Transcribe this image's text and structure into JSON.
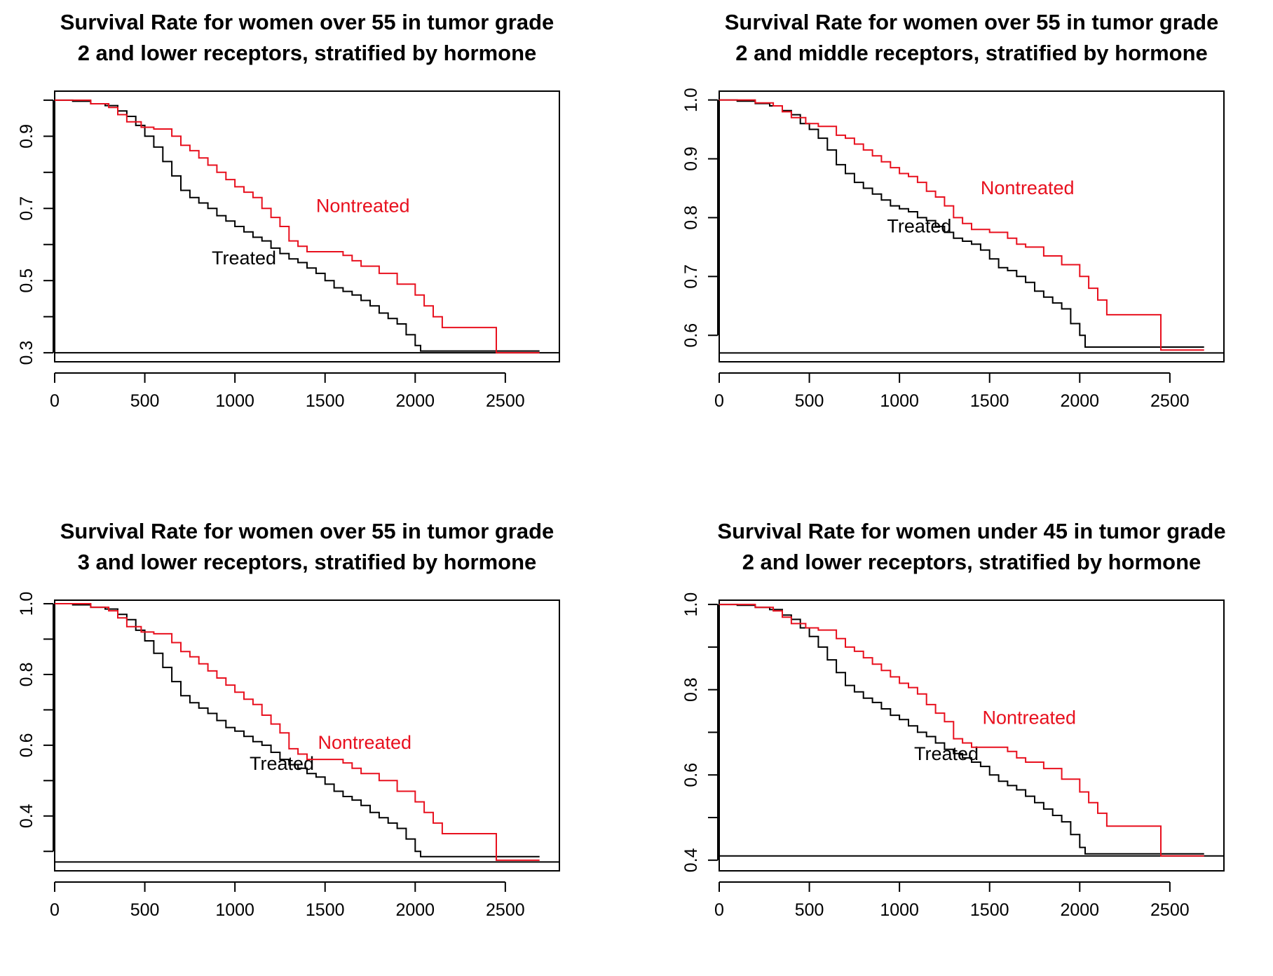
{
  "chart_data": [
    {
      "type": "line",
      "title_lines": [
        "Survival Rate for women over 55 in tumor grade",
        "2 and lower receptors, stratified by hormone"
      ],
      "xlabel": "",
      "ylabel": "",
      "xlim": [
        0,
        2800
      ],
      "ylim": [
        0.275,
        1.025
      ],
      "xticks": [
        0,
        500,
        1000,
        1500,
        2000,
        2500
      ],
      "yticks": [
        0.3,
        0.5,
        0.7,
        0.9
      ],
      "yminor": [
        0.4,
        0.6,
        0.8,
        1.0
      ],
      "grid": false,
      "hline": 0.3,
      "series": [
        {
          "name": "Treated",
          "color": "#000000",
          "x": [
            0,
            100,
            200,
            280,
            350,
            400,
            450,
            500,
            550,
            600,
            650,
            700,
            750,
            800,
            850,
            900,
            950,
            1000,
            1050,
            1100,
            1150,
            1200,
            1250,
            1300,
            1350,
            1400,
            1450,
            1500,
            1550,
            1600,
            1650,
            1700,
            1750,
            1800,
            1850,
            1900,
            1950,
            2000,
            2030,
            2100,
            2200,
            2690
          ],
          "y": [
            1.0,
            0.997,
            0.99,
            0.985,
            0.97,
            0.955,
            0.93,
            0.9,
            0.87,
            0.83,
            0.79,
            0.75,
            0.73,
            0.715,
            0.7,
            0.68,
            0.665,
            0.65,
            0.635,
            0.62,
            0.61,
            0.59,
            0.575,
            0.56,
            0.55,
            0.535,
            0.52,
            0.5,
            0.48,
            0.47,
            0.46,
            0.445,
            0.43,
            0.41,
            0.395,
            0.38,
            0.35,
            0.32,
            0.305,
            0.305,
            0.305,
            0.305
          ],
          "label": {
            "text": "Treated",
            "x": 1050,
            "y": 0.545
          }
        },
        {
          "name": "Nontreated",
          "color": "#e8101e",
          "x": [
            0,
            200,
            300,
            350,
            400,
            480,
            550,
            650,
            700,
            750,
            800,
            850,
            900,
            950,
            1000,
            1050,
            1100,
            1150,
            1200,
            1250,
            1300,
            1350,
            1400,
            1500,
            1600,
            1650,
            1700,
            1800,
            1900,
            2000,
            2050,
            2100,
            2150,
            2200,
            2450,
            2690
          ],
          "y": [
            1.0,
            0.99,
            0.98,
            0.96,
            0.94,
            0.925,
            0.92,
            0.9,
            0.875,
            0.86,
            0.84,
            0.82,
            0.8,
            0.78,
            0.76,
            0.745,
            0.73,
            0.7,
            0.675,
            0.65,
            0.61,
            0.595,
            0.58,
            0.58,
            0.57,
            0.555,
            0.54,
            0.52,
            0.49,
            0.46,
            0.43,
            0.4,
            0.37,
            0.37,
            0.3,
            0.3
          ],
          "label": {
            "text": "Nontreated",
            "x": 1710,
            "y": 0.69
          }
        }
      ]
    },
    {
      "type": "line",
      "title_lines": [
        "Survival Rate for women over 55 in tumor grade",
        "2 and middle receptors, stratified by hormone"
      ],
      "xlabel": "",
      "ylabel": "",
      "xlim": [
        0,
        2800
      ],
      "ylim": [
        0.555,
        1.015
      ],
      "xticks": [
        0,
        500,
        1000,
        1500,
        2000,
        2500
      ],
      "yticks": [
        0.6,
        0.7,
        0.8,
        0.9,
        1.0
      ],
      "yminor": [],
      "grid": false,
      "hline": 0.57,
      "series": [
        {
          "name": "Treated",
          "color": "#000000",
          "x": [
            0,
            100,
            200,
            280,
            350,
            400,
            450,
            500,
            550,
            600,
            650,
            700,
            750,
            800,
            850,
            900,
            950,
            1000,
            1050,
            1100,
            1150,
            1200,
            1250,
            1300,
            1350,
            1400,
            1450,
            1500,
            1550,
            1600,
            1650,
            1700,
            1750,
            1800,
            1850,
            1900,
            1950,
            2000,
            2030,
            2100,
            2200,
            2690
          ],
          "y": [
            1.0,
            0.998,
            0.994,
            0.99,
            0.982,
            0.975,
            0.96,
            0.95,
            0.935,
            0.915,
            0.89,
            0.875,
            0.86,
            0.85,
            0.84,
            0.83,
            0.82,
            0.815,
            0.81,
            0.8,
            0.795,
            0.785,
            0.775,
            0.765,
            0.76,
            0.755,
            0.745,
            0.73,
            0.715,
            0.71,
            0.7,
            0.69,
            0.675,
            0.665,
            0.655,
            0.645,
            0.62,
            0.6,
            0.58,
            0.58,
            0.58,
            0.58
          ],
          "label": {
            "text": "Treated",
            "x": 1110,
            "y": 0.775
          }
        },
        {
          "name": "Nontreated",
          "color": "#e8101e",
          "x": [
            0,
            200,
            300,
            350,
            400,
            480,
            550,
            650,
            700,
            750,
            800,
            850,
            900,
            950,
            1000,
            1050,
            1100,
            1150,
            1200,
            1250,
            1300,
            1350,
            1400,
            1500,
            1600,
            1650,
            1700,
            1800,
            1900,
            2000,
            2050,
            2100,
            2150,
            2200,
            2450,
            2690
          ],
          "y": [
            1.0,
            0.995,
            0.99,
            0.98,
            0.97,
            0.96,
            0.955,
            0.94,
            0.935,
            0.925,
            0.915,
            0.905,
            0.895,
            0.885,
            0.875,
            0.87,
            0.86,
            0.845,
            0.835,
            0.82,
            0.8,
            0.79,
            0.78,
            0.775,
            0.765,
            0.755,
            0.75,
            0.735,
            0.72,
            0.7,
            0.68,
            0.66,
            0.635,
            0.635,
            0.575,
            0.575
          ],
          "label": {
            "text": "Nontreated",
            "x": 1710,
            "y": 0.84
          }
        }
      ]
    },
    {
      "type": "line",
      "title_lines": [
        "Survival Rate for women over 55 in tumor grade",
        "3 and lower receptors, stratified by hormone"
      ],
      "xlabel": "",
      "ylabel": "",
      "xlim": [
        0,
        2800
      ],
      "ylim": [
        0.245,
        1.01
      ],
      "xticks": [
        0,
        500,
        1000,
        1500,
        2000,
        2500
      ],
      "yticks": [
        0.4,
        0.6,
        0.8,
        1.0
      ],
      "yminor": [
        0.3,
        0.5,
        0.7,
        0.9
      ],
      "grid": false,
      "hline": 0.27,
      "series": [
        {
          "name": "Treated",
          "color": "#000000",
          "x": [
            0,
            100,
            200,
            280,
            350,
            400,
            450,
            500,
            550,
            600,
            650,
            700,
            750,
            800,
            850,
            900,
            950,
            1000,
            1050,
            1100,
            1150,
            1200,
            1250,
            1300,
            1350,
            1400,
            1450,
            1500,
            1550,
            1600,
            1650,
            1700,
            1750,
            1800,
            1850,
            1900,
            1950,
            2000,
            2030,
            2100,
            2200,
            2690
          ],
          "y": [
            1.0,
            0.997,
            0.99,
            0.985,
            0.97,
            0.955,
            0.925,
            0.895,
            0.86,
            0.82,
            0.78,
            0.74,
            0.72,
            0.705,
            0.69,
            0.67,
            0.65,
            0.64,
            0.625,
            0.61,
            0.6,
            0.58,
            0.56,
            0.545,
            0.535,
            0.52,
            0.51,
            0.49,
            0.47,
            0.455,
            0.445,
            0.43,
            0.41,
            0.395,
            0.38,
            0.365,
            0.335,
            0.3,
            0.285,
            0.285,
            0.285,
            0.285
          ],
          "label": {
            "text": "Treated",
            "x": 1260,
            "y": 0.53
          }
        },
        {
          "name": "Nontreated",
          "color": "#e8101e",
          "x": [
            0,
            200,
            300,
            350,
            400,
            480,
            550,
            650,
            700,
            750,
            800,
            850,
            900,
            950,
            1000,
            1050,
            1100,
            1150,
            1200,
            1250,
            1300,
            1350,
            1400,
            1500,
            1600,
            1650,
            1700,
            1800,
            1900,
            2000,
            2050,
            2100,
            2150,
            2200,
            2450,
            2690
          ],
          "y": [
            1.0,
            0.99,
            0.98,
            0.96,
            0.935,
            0.92,
            0.915,
            0.89,
            0.865,
            0.85,
            0.83,
            0.81,
            0.79,
            0.77,
            0.75,
            0.73,
            0.715,
            0.685,
            0.66,
            0.635,
            0.59,
            0.575,
            0.56,
            0.56,
            0.55,
            0.535,
            0.52,
            0.5,
            0.47,
            0.44,
            0.41,
            0.38,
            0.35,
            0.35,
            0.275,
            0.275
          ],
          "label": {
            "text": "Nontreated",
            "x": 1720,
            "y": 0.59
          }
        }
      ]
    },
    {
      "type": "line",
      "title_lines": [
        "Survival Rate for women under 45 in tumor grade",
        "2 and lower receptors, stratified by hormone"
      ],
      "xlabel": "",
      "ylabel": "",
      "xlim": [
        0,
        2800
      ],
      "ylim": [
        0.375,
        1.01
      ],
      "xticks": [
        0,
        500,
        1000,
        1500,
        2000,
        2500
      ],
      "yticks": [
        0.4,
        0.6,
        0.8,
        1.0
      ],
      "yminor": [
        0.5,
        0.7,
        0.9
      ],
      "grid": false,
      "hline": 0.41,
      "series": [
        {
          "name": "Treated",
          "color": "#000000",
          "x": [
            0,
            100,
            200,
            280,
            350,
            400,
            450,
            500,
            550,
            600,
            650,
            700,
            750,
            800,
            850,
            900,
            950,
            1000,
            1050,
            1100,
            1150,
            1200,
            1250,
            1300,
            1350,
            1400,
            1450,
            1500,
            1550,
            1600,
            1650,
            1700,
            1750,
            1800,
            1850,
            1900,
            1950,
            2000,
            2030,
            2100,
            2200,
            2690
          ],
          "y": [
            1.0,
            0.998,
            0.993,
            0.988,
            0.975,
            0.965,
            0.945,
            0.925,
            0.9,
            0.87,
            0.84,
            0.81,
            0.795,
            0.78,
            0.77,
            0.755,
            0.74,
            0.73,
            0.715,
            0.7,
            0.69,
            0.675,
            0.66,
            0.65,
            0.64,
            0.63,
            0.62,
            0.6,
            0.585,
            0.575,
            0.565,
            0.55,
            0.535,
            0.52,
            0.505,
            0.49,
            0.46,
            0.43,
            0.415,
            0.415,
            0.415,
            0.415
          ],
          "label": {
            "text": "Treated",
            "x": 1260,
            "y": 0.635
          }
        },
        {
          "name": "Nontreated",
          "color": "#e8101e",
          "x": [
            0,
            200,
            300,
            350,
            400,
            480,
            550,
            650,
            700,
            750,
            800,
            850,
            900,
            950,
            1000,
            1050,
            1100,
            1150,
            1200,
            1250,
            1300,
            1350,
            1400,
            1500,
            1600,
            1650,
            1700,
            1800,
            1900,
            2000,
            2050,
            2100,
            2150,
            2200,
            2450,
            2690
          ],
          "y": [
            1.0,
            0.993,
            0.985,
            0.97,
            0.955,
            0.945,
            0.94,
            0.92,
            0.9,
            0.89,
            0.875,
            0.86,
            0.845,
            0.83,
            0.815,
            0.805,
            0.79,
            0.765,
            0.745,
            0.725,
            0.685,
            0.675,
            0.665,
            0.665,
            0.655,
            0.64,
            0.63,
            0.615,
            0.59,
            0.56,
            0.535,
            0.51,
            0.48,
            0.48,
            0.41,
            0.41
          ],
          "label": {
            "text": "Nontreated",
            "x": 1720,
            "y": 0.72
          }
        }
      ]
    }
  ]
}
